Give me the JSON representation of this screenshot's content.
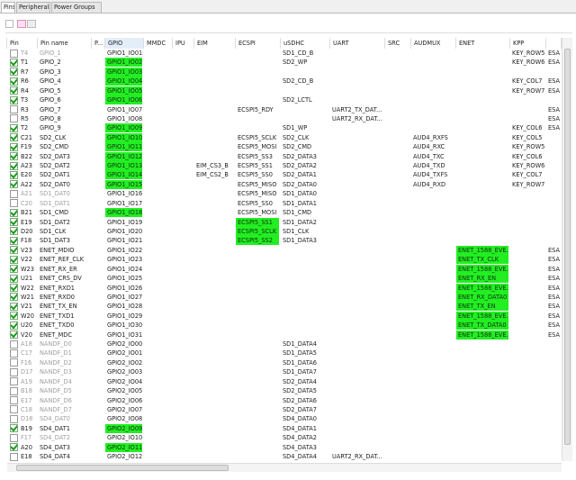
{
  "tabs": [
    "Pins",
    "Peripherals",
    "Power Groups"
  ],
  "table": {
    "columns": [
      {
        "key": "pin",
        "label": "Pin"
      },
      {
        "key": "name",
        "label": "Pin name"
      },
      {
        "key": "p",
        "label": "P..."
      },
      {
        "key": "gpio",
        "label": "GPIO"
      },
      {
        "key": "mmdc",
        "label": "MMDC"
      },
      {
        "key": "ipu",
        "label": "IPU"
      },
      {
        "key": "eim",
        "label": "EIM"
      },
      {
        "key": "ecspi",
        "label": "ECSPI"
      },
      {
        "key": "usdhc",
        "label": "uSDHC"
      },
      {
        "key": "uart",
        "label": "UART"
      },
      {
        "key": "src",
        "label": "SRC"
      },
      {
        "key": "audmux",
        "label": "AUDMUX"
      },
      {
        "key": "enet",
        "label": "ENET"
      },
      {
        "key": "kpp",
        "label": "KPP"
      },
      {
        "key": "esa"
      }
    ],
    "rows": [
      {
        "pin": "T4",
        "name": "GPIO_1",
        "dim": true,
        "checked": false,
        "gpio": "GPIO1_IO01",
        "usdhc": "SD1_CD_B",
        "kpp": "KEY_ROW5",
        "esa": "ESA"
      },
      {
        "pin": "T1",
        "name": "GPIO_2",
        "checked": true,
        "sel": "gpio",
        "gpio": "GPIO1_IO02",
        "usdhc": "SD2_WP",
        "kpp": "KEY_ROW6",
        "esa": "ESA"
      },
      {
        "pin": "R7",
        "name": "GPIO_3",
        "checked": true,
        "sel": "gpio",
        "gpio": "GPIO1_IO03"
      },
      {
        "pin": "R6",
        "name": "GPIO_4",
        "checked": true,
        "sel": "gpio",
        "gpio": "GPIO1_IO04",
        "usdhc": "SD2_CD_B",
        "kpp": "KEY_COL7",
        "esa": "ESA"
      },
      {
        "pin": "R4",
        "name": "GPIO_5",
        "checked": true,
        "sel": "gpio",
        "gpio": "GPIO1_IO05",
        "kpp": "KEY_ROW7",
        "esa": "ESA"
      },
      {
        "pin": "T3",
        "name": "GPIO_6",
        "checked": true,
        "sel": "gpio",
        "gpio": "GPIO1_IO06",
        "usdhc": "SD2_LCTL"
      },
      {
        "pin": "R3",
        "name": "GPIO_7",
        "checked": false,
        "gpio": "GPIO1_IO07",
        "ecspi": "ECSPI5_RDY",
        "uart": "UART2_TX_DAT...",
        "esa": "ESA"
      },
      {
        "pin": "R5",
        "name": "GPIO_8",
        "checked": false,
        "gpio": "GPIO1_IO08",
        "uart": "UART2_RX_DAT...",
        "esa": "ESA"
      },
      {
        "pin": "T2",
        "name": "GPIO_9",
        "checked": true,
        "sel": "gpio",
        "gpio": "GPIO1_IO09",
        "usdhc": "SD1_WP",
        "kpp": "KEY_COL6",
        "esa": "ESA"
      },
      {
        "pin": "C21",
        "name": "SD2_CLK",
        "checked": true,
        "sel": "gpio",
        "gpio": "GPIO1_IO10",
        "ecspi": "ECSPI5_SCLK",
        "usdhc": "SD2_CLK",
        "audmux": "AUD4_RXFS",
        "kpp": "KEY_COL5"
      },
      {
        "pin": "F19",
        "name": "SD2_CMD",
        "checked": true,
        "sel": "gpio",
        "gpio": "GPIO1_IO11",
        "ecspi": "ECSPI5_MOSI",
        "usdhc": "SD2_CMD",
        "audmux": "AUD4_RXC",
        "kpp": "KEY_ROW5"
      },
      {
        "pin": "B22",
        "name": "SD2_DAT3",
        "checked": true,
        "sel": "gpio",
        "gpio": "GPIO1_IO12",
        "ecspi": "ECSPI5_SS3",
        "usdhc": "SD2_DATA3",
        "audmux": "AUD4_TXC",
        "kpp": "KEY_COL6"
      },
      {
        "pin": "A23",
        "name": "SD2_DAT2",
        "checked": true,
        "sel": "gpio",
        "gpio": "GPIO1_IO13",
        "eim": "EIM_CS3_B",
        "ecspi": "ECSPI5_SS1",
        "usdhc": "SD2_DATA2",
        "audmux": "AUD4_TXD",
        "kpp": "KEY_ROW6"
      },
      {
        "pin": "E20",
        "name": "SD2_DAT1",
        "checked": true,
        "sel": "gpio",
        "gpio": "GPIO1_IO14",
        "eim": "EIM_CS2_B",
        "ecspi": "ECSPI5_SS0",
        "usdhc": "SD2_DATA1",
        "audmux": "AUD4_TXFS",
        "kpp": "KEY_COL7"
      },
      {
        "pin": "A22",
        "name": "SD2_DAT0",
        "checked": true,
        "sel": "gpio",
        "gpio": "GPIO1_IO15",
        "ecspi": "ECSPI5_MISO",
        "usdhc": "SD2_DATA0",
        "audmux": "AUD4_RXD",
        "kpp": "KEY_ROW7"
      },
      {
        "pin": "A21",
        "name": "SD1_DAT0",
        "dim": true,
        "checked": false,
        "gpio": "GPIO1_IO16",
        "ecspi": "ECSPI5_MISO",
        "usdhc": "SD1_DATA0"
      },
      {
        "pin": "C20",
        "name": "SD1_DAT1",
        "dim": true,
        "checked": false,
        "gpio": "GPIO1_IO17",
        "ecspi": "ECSPI5_SS0",
        "usdhc": "SD1_DATA1"
      },
      {
        "pin": "B21",
        "name": "SD1_CMD",
        "checked": true,
        "sel": "gpio",
        "gpio": "GPIO1_IO18",
        "ecspi": "ECSPI5_MOSI",
        "usdhc": "SD1_CMD"
      },
      {
        "pin": "E19",
        "name": "SD1_DAT2",
        "checked": true,
        "sel": "ecspi",
        "gpio": "GPIO1_IO19",
        "ecspi": "ECSPI5_SS1",
        "usdhc": "SD1_DATA2"
      },
      {
        "pin": "D20",
        "name": "SD1_CLK",
        "checked": true,
        "sel": "ecspi",
        "gpio": "GPIO1_IO20",
        "ecspi": "ECSPI5_SCLK",
        "usdhc": "SD1_CLK"
      },
      {
        "pin": "F18",
        "name": "SD1_DAT3",
        "checked": true,
        "sel": "ecspi",
        "gpio": "GPIO1_IO21",
        "ecspi": "ECSPI5_SS2",
        "usdhc": "SD1_DATA3"
      },
      {
        "pin": "V23",
        "name": "ENET_MDIO",
        "checked": true,
        "sel": "enet",
        "gpio": "GPIO1_IO22",
        "enet": "ENET_1588_EVE...",
        "esa": "ESA"
      },
      {
        "pin": "V22",
        "name": "ENET_REF_CLK",
        "checked": true,
        "sel": "enet",
        "gpio": "GPIO1_IO23",
        "enet": "ENET_TX_CLK",
        "esa": "ESA"
      },
      {
        "pin": "W23",
        "name": "ENET_RX_ER",
        "checked": true,
        "sel": "enet",
        "gpio": "GPIO1_IO24",
        "enet": "ENET_1588_EVE...",
        "esa": "ESA"
      },
      {
        "pin": "U21",
        "name": "ENET_CRS_DV",
        "checked": true,
        "sel": "enet",
        "gpio": "GPIO1_IO25",
        "enet": "ENET_RX_EN",
        "esa": "ESA"
      },
      {
        "pin": "W22",
        "name": "ENET_RXD1",
        "checked": true,
        "sel": "enet",
        "gpio": "GPIO1_IO26",
        "enet": "ENET_1588_EVE...",
        "esa": "ESA"
      },
      {
        "pin": "W21",
        "name": "ENET_RXD0",
        "checked": true,
        "sel": "enet",
        "gpio": "GPIO1_IO27",
        "enet": "ENET_RX_DATA0",
        "esa": "ESA"
      },
      {
        "pin": "V21",
        "name": "ENET_TX_EN",
        "checked": true,
        "sel": "enet",
        "gpio": "GPIO1_IO28",
        "enet": "ENET_TX_EN",
        "esa": "ESA"
      },
      {
        "pin": "W20",
        "name": "ENET_TXD1",
        "checked": true,
        "sel": "enet",
        "gpio": "GPIO1_IO29",
        "enet": "ENET_1588_EVE...",
        "esa": "ESA"
      },
      {
        "pin": "U20",
        "name": "ENET_TXD0",
        "checked": true,
        "sel": "enet",
        "gpio": "GPIO1_IO30",
        "enet": "ENET_TX_DATA0",
        "esa": "ESA"
      },
      {
        "pin": "V20",
        "name": "ENET_MDC",
        "checked": true,
        "sel": "enet",
        "gpio": "GPIO1_IO31",
        "enet": "ENET_1588_EVE...",
        "esa": "ESA"
      },
      {
        "pin": "A18",
        "name": "NANDF_D0",
        "dim": true,
        "checked": false,
        "gpio": "GPIO2_IO00",
        "usdhc": "SD1_DATA4"
      },
      {
        "pin": "C17",
        "name": "NANDF_D1",
        "dim": true,
        "checked": false,
        "gpio": "GPIO2_IO01",
        "usdhc": "SD1_DATA5"
      },
      {
        "pin": "F16",
        "name": "NANDF_D2",
        "dim": true,
        "checked": false,
        "gpio": "GPIO2_IO02",
        "usdhc": "SD1_DATA6"
      },
      {
        "pin": "D17",
        "name": "NANDF_D3",
        "dim": true,
        "checked": false,
        "gpio": "GPIO2_IO03",
        "usdhc": "SD1_DATA7"
      },
      {
        "pin": "A19",
        "name": "NANDF_D4",
        "dim": true,
        "checked": false,
        "gpio": "GPIO2_IO04",
        "usdhc": "SD2_DATA4"
      },
      {
        "pin": "B18",
        "name": "NANDF_D5",
        "dim": true,
        "checked": false,
        "gpio": "GPIO2_IO05",
        "usdhc": "SD2_DATA5"
      },
      {
        "pin": "E17",
        "name": "NANDF_D6",
        "dim": true,
        "checked": false,
        "gpio": "GPIO2_IO06",
        "usdhc": "SD2_DATA6"
      },
      {
        "pin": "C18",
        "name": "NANDF_D7",
        "dim": true,
        "checked": false,
        "gpio": "GPIO2_IO07",
        "usdhc": "SD2_DATA7"
      },
      {
        "pin": "D18",
        "name": "SD4_DAT0",
        "dim": true,
        "checked": false,
        "gpio": "GPIO2_IO08",
        "usdhc": "SD4_DATA0"
      },
      {
        "pin": "B19",
        "name": "SD4_DAT1",
        "checked": true,
        "sel": "gpio",
        "gpio": "GPIO2_IO09",
        "usdhc": "SD4_DATA1"
      },
      {
        "pin": "F17",
        "name": "SD4_DAT2",
        "dim": true,
        "checked": false,
        "gpio": "GPIO2_IO10",
        "usdhc": "SD4_DATA2"
      },
      {
        "pin": "A20",
        "name": "SD4_DAT3",
        "checked": true,
        "sel": "gpio",
        "gpio": "GPIO2_IO11",
        "usdhc": "SD4_DATA3"
      },
      {
        "pin": "E18",
        "name": "SD4_DAT4",
        "checked": false,
        "gpio": "GPIO2_IO12",
        "usdhc": "SD4_DATA4",
        "uart": "UART2_RX_DAT..."
      }
    ]
  }
}
